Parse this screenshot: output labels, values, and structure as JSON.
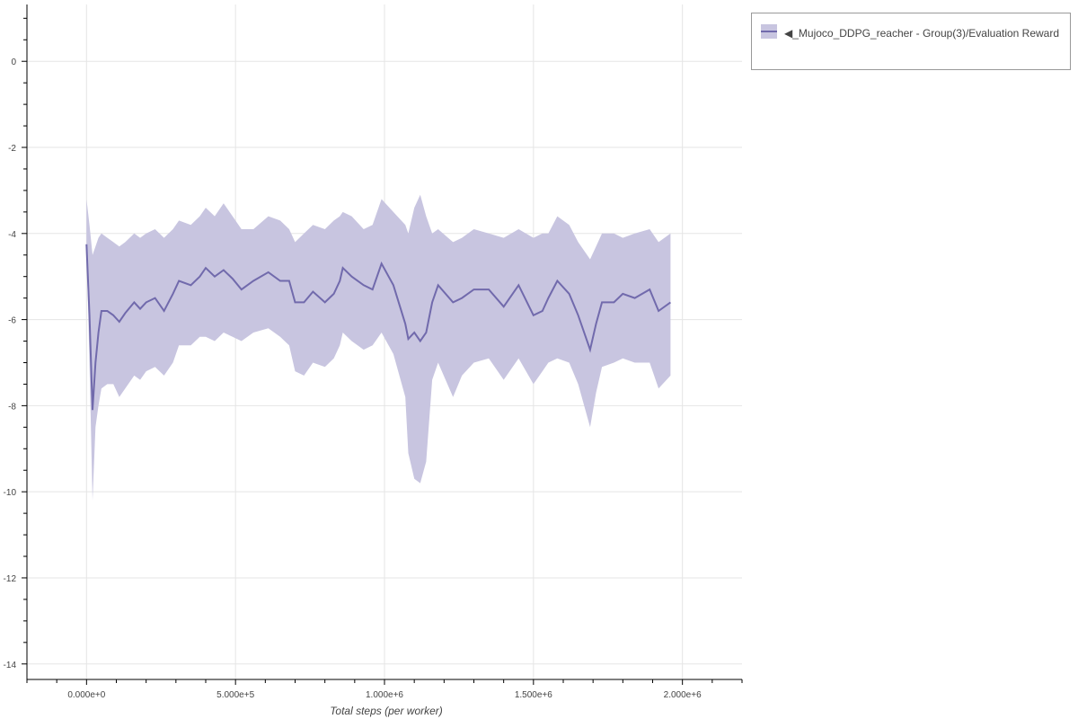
{
  "chart_data": {
    "type": "area",
    "title": "",
    "xlabel": "Total steps (per worker)",
    "ylabel": "",
    "xlim": [
      -200000,
      2200000
    ],
    "ylim": [
      -14.36,
      1.32
    ],
    "x_ticks": [
      0,
      500000,
      1000000,
      1500000,
      2000000
    ],
    "x_tick_labels": [
      "0.000e+0",
      "5.000e+5",
      "1.000e+6",
      "1.500e+6",
      "2.000e+6"
    ],
    "y_ticks": [
      0,
      -2,
      -4,
      -6,
      -8,
      -10,
      -12,
      -14
    ],
    "y_tick_labels": [
      "0",
      "-2",
      "-4",
      "-6",
      "-8",
      "-10",
      "-12",
      "-14"
    ],
    "grid": true,
    "legend_placement": "outside-top-right",
    "colors": {
      "line": "#716aac",
      "band": "#c8c5e0"
    },
    "series": [
      {
        "name": "◀_Mujoco_DDPG_reacher - Group(3)/Evaluation Reward",
        "x": [
          0,
          10000,
          20000,
          30000,
          40000,
          50000,
          70000,
          90000,
          110000,
          130000,
          160000,
          180000,
          200000,
          230000,
          260000,
          290000,
          310000,
          350000,
          380000,
          400000,
          430000,
          460000,
          490000,
          520000,
          560000,
          610000,
          650000,
          680000,
          700000,
          730000,
          760000,
          800000,
          830000,
          850000,
          860000,
          890000,
          930000,
          960000,
          990000,
          1030000,
          1070000,
          1080000,
          1100000,
          1120000,
          1140000,
          1160000,
          1180000,
          1230000,
          1260000,
          1300000,
          1350000,
          1400000,
          1450000,
          1500000,
          1530000,
          1550000,
          1580000,
          1620000,
          1650000,
          1690000,
          1710000,
          1730000,
          1770000,
          1800000,
          1840000,
          1890000,
          1920000,
          1960000
        ],
        "mean": [
          -4.25,
          -5.9,
          -8.1,
          -7.0,
          -6.3,
          -5.8,
          -5.8,
          -5.9,
          -6.05,
          -5.85,
          -5.6,
          -5.75,
          -5.6,
          -5.5,
          -5.8,
          -5.4,
          -5.1,
          -5.2,
          -5.0,
          -4.8,
          -5.0,
          -4.85,
          -5.05,
          -5.3,
          -5.1,
          -4.9,
          -5.1,
          -5.1,
          -5.6,
          -5.6,
          -5.35,
          -5.6,
          -5.4,
          -5.1,
          -4.8,
          -5.0,
          -5.2,
          -5.3,
          -4.7,
          -5.2,
          -6.1,
          -6.45,
          -6.3,
          -6.5,
          -6.3,
          -5.6,
          -5.2,
          -5.6,
          -5.5,
          -5.3,
          -5.3,
          -5.7,
          -5.2,
          -5.9,
          -5.8,
          -5.5,
          -5.1,
          -5.4,
          -5.9,
          -6.7,
          -6.1,
          -5.6,
          -5.6,
          -5.4,
          -5.5,
          -5.3,
          -5.8,
          -5.6
        ],
        "lower": [
          -4.3,
          -7.0,
          -10.2,
          -8.5,
          -8.0,
          -7.6,
          -7.5,
          -7.5,
          -7.8,
          -7.6,
          -7.3,
          -7.4,
          -7.2,
          -7.1,
          -7.3,
          -7.0,
          -6.6,
          -6.6,
          -6.4,
          -6.4,
          -6.5,
          -6.3,
          -6.4,
          -6.5,
          -6.3,
          -6.2,
          -6.4,
          -6.6,
          -7.2,
          -7.3,
          -7.0,
          -7.1,
          -6.9,
          -6.6,
          -6.3,
          -6.5,
          -6.7,
          -6.6,
          -6.3,
          -6.8,
          -7.8,
          -9.1,
          -9.7,
          -9.8,
          -9.3,
          -7.4,
          -7.0,
          -7.8,
          -7.3,
          -7.0,
          -6.9,
          -7.4,
          -6.9,
          -7.5,
          -7.2,
          -7.0,
          -6.9,
          -7.0,
          -7.5,
          -8.5,
          -7.7,
          -7.1,
          -7.0,
          -6.9,
          -7.0,
          -7.0,
          -7.6,
          -7.3
        ],
        "upper": [
          -3.2,
          -3.8,
          -4.5,
          -4.3,
          -4.1,
          -4.0,
          -4.1,
          -4.2,
          -4.3,
          -4.2,
          -4.0,
          -4.1,
          -4.0,
          -3.9,
          -4.1,
          -3.9,
          -3.7,
          -3.8,
          -3.6,
          -3.4,
          -3.6,
          -3.3,
          -3.6,
          -3.9,
          -3.9,
          -3.6,
          -3.7,
          -3.9,
          -4.2,
          -4.0,
          -3.8,
          -3.9,
          -3.7,
          -3.6,
          -3.5,
          -3.6,
          -3.9,
          -3.8,
          -3.2,
          -3.5,
          -3.8,
          -4.0,
          -3.4,
          -3.1,
          -3.6,
          -4.0,
          -3.9,
          -4.2,
          -4.1,
          -3.9,
          -4.0,
          -4.1,
          -3.9,
          -4.1,
          -4.0,
          -4.0,
          -3.6,
          -3.8,
          -4.2,
          -4.6,
          -4.3,
          -4.0,
          -4.0,
          -4.1,
          -4.0,
          -3.9,
          -4.2,
          -4.0
        ]
      }
    ]
  },
  "legend": {
    "label": "◀_Mujoco_DDPG_reacher - Group(3)/Evaluation Reward"
  }
}
